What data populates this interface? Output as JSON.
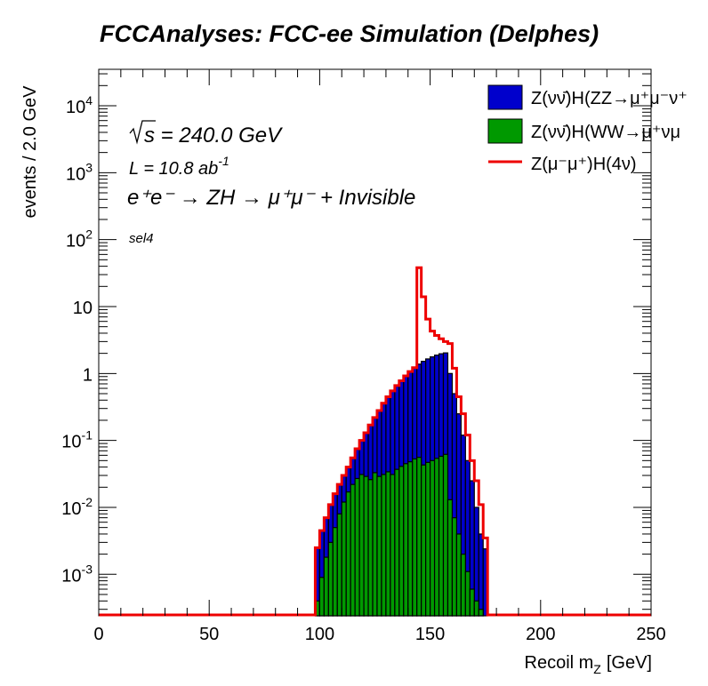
{
  "chart_data": {
    "type": "histogram",
    "title": "FCCAnalyses: FCC-ee Simulation (Delphes)",
    "xlabel": "Recoil m",
    "xlabel_sub": "Z",
    "xlabel_unit": "[GeV]",
    "ylabel": "events / 2.0 GeV",
    "x_range": [
      0,
      250
    ],
    "y_range": [
      0.00024,
      35000
    ],
    "y_scale": "log",
    "bin_width": 2.0,
    "x_ticks": [
      "0",
      "50",
      "100",
      "150",
      "200",
      "250"
    ],
    "y_ticks": [
      {
        "value": 0.001,
        "base": "10",
        "exp": "-3"
      },
      {
        "value": 0.01,
        "base": "10",
        "exp": "-2"
      },
      {
        "value": 0.1,
        "base": "10",
        "exp": "-1"
      },
      {
        "value": 1,
        "base": "1",
        "exp": ""
      },
      {
        "value": 10,
        "base": "10",
        "exp": ""
      },
      {
        "value": 100,
        "base": "10",
        "exp": "2"
      },
      {
        "value": 1000,
        "base": "10",
        "exp": "3"
      },
      {
        "value": 10000,
        "base": "10",
        "exp": "4"
      }
    ],
    "annotations": {
      "sqrt_s": "s = 240.0 GeV",
      "lumi_prefix": "L = 10.8 ab",
      "lumi_exp": "-1",
      "process": "e⁺e⁻ → ZH → μ⁺μ⁻ + Invisible",
      "selection": "sel4"
    },
    "legend_position": "top-right",
    "series": [
      {
        "name": "Z(νν̄)H(ZZ→μ⁺μ⁻ν⁺ν⁻)",
        "legend_label": "Z(νν̄)H(ZZ→μ⁺μ⁻ν⁺",
        "style": "stacked-fill",
        "color": "#0000cc",
        "x_start": 98,
        "values": [
          0.0025,
          0.0045,
          0.007,
          0.011,
          0.016,
          0.022,
          0.03,
          0.04,
          0.055,
          0.075,
          0.1,
          0.13,
          0.17,
          0.22,
          0.28,
          0.36,
          0.45,
          0.55,
          0.66,
          0.78,
          0.92,
          1.07,
          1.22,
          1.38,
          1.52,
          1.65,
          1.77,
          1.88,
          1.97,
          2.03,
          1.0,
          0.5,
          0.25,
          0.12,
          0.05,
          0.025,
          0.01,
          0.004,
          0.0024
        ]
      },
      {
        "name": "Z(νν̄)H(WW→μ⁺νμ⁻ν̄)",
        "legend_label": "Z(νν̄)H(WW→μ⁺νμ",
        "style": "stacked-fill",
        "color": "#009900",
        "x_start": 98,
        "values": [
          0.0004,
          0.0009,
          0.0018,
          0.003,
          0.005,
          0.008,
          0.012,
          0.017,
          0.022,
          0.027,
          0.031,
          0.029,
          0.026,
          0.033,
          0.029,
          0.031,
          0.034,
          0.031,
          0.037,
          0.041,
          0.045,
          0.048,
          0.053,
          0.056,
          0.043,
          0.047,
          0.05,
          0.054,
          0.058,
          0.062,
          0.013,
          0.007,
          0.004,
          0.002,
          0.0011,
          0.0006,
          0.0004,
          0.0003
        ]
      },
      {
        "name": "Z(μ⁻μ⁺)H(4ν)",
        "legend_label": "Z(μ⁻μ⁺)H(4ν)",
        "style": "line",
        "color": "#ee0000",
        "x_start": 98,
        "values": [
          0.0025,
          0.0045,
          0.007,
          0.011,
          0.016,
          0.022,
          0.03,
          0.04,
          0.055,
          0.075,
          0.1,
          0.13,
          0.17,
          0.22,
          0.28,
          0.36,
          0.45,
          0.55,
          0.66,
          0.78,
          0.92,
          1.07,
          1.22,
          38,
          14,
          6.5,
          4.3,
          3.7,
          3.3,
          3.0,
          2.8,
          1.2,
          0.45,
          0.25,
          0.12,
          0.05,
          0.025,
          0.011,
          0.0035
        ]
      }
    ]
  }
}
